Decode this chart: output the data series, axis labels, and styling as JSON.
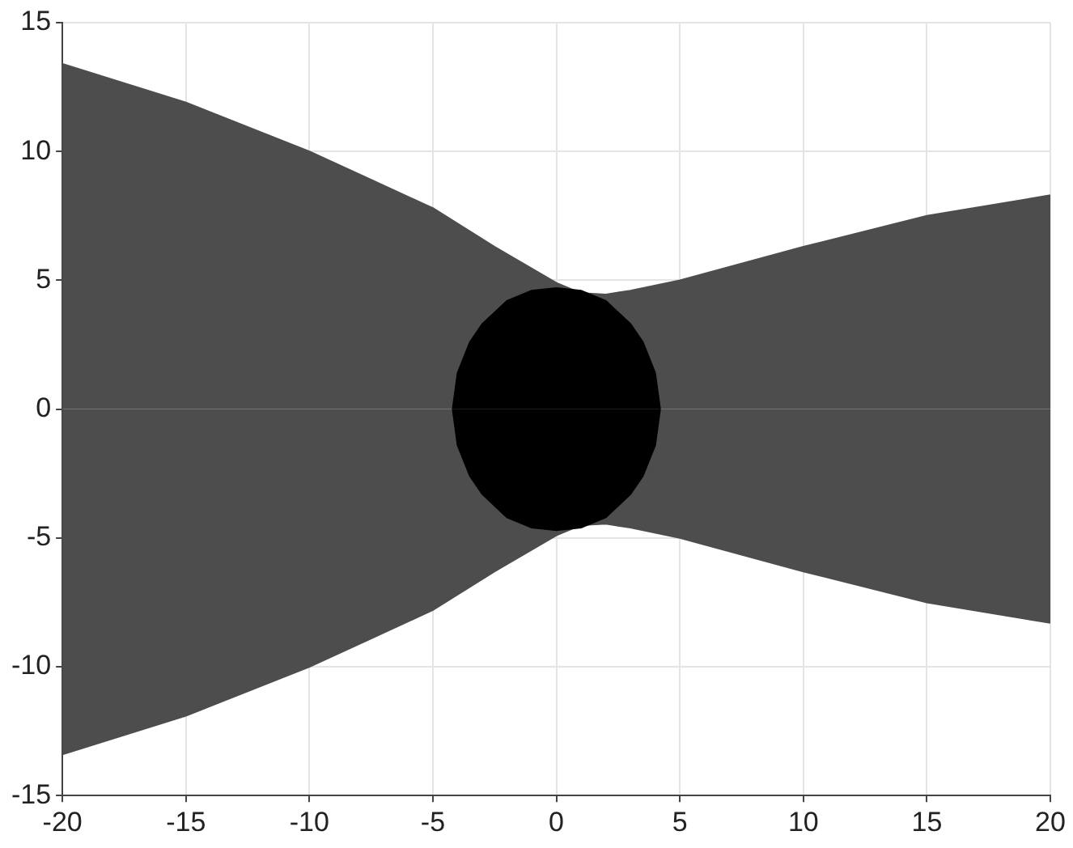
{
  "chart_data": {
    "type": "area",
    "xlim": [
      -20,
      20
    ],
    "ylim": [
      -15,
      15
    ],
    "xticks": [
      -20,
      -15,
      -10,
      -5,
      0,
      5,
      10,
      15,
      20
    ],
    "yticks": [
      -15,
      -10,
      -5,
      0,
      5,
      10,
      15
    ],
    "grid": true,
    "legend": false,
    "series": [
      {
        "color": "#4d4d4d",
        "x": [
          -20,
          -15,
          -10,
          -7.5,
          -5,
          -2.5,
          0,
          1,
          2,
          3,
          5,
          10,
          15,
          20
        ],
        "values": [
          13.4,
          11.9,
          10.0,
          8.9,
          7.8,
          6.3,
          4.9,
          4.5,
          4.45,
          4.6,
          5.0,
          6.3,
          7.5,
          8.3
        ]
      },
      {
        "color": "#4d4d4d",
        "x": [
          -20,
          -15,
          -10,
          -7.5,
          -5,
          -2.5,
          0,
          1,
          2,
          3,
          5,
          10,
          15,
          20
        ],
        "values": [
          -13.4,
          -11.9,
          -10.0,
          -8.9,
          -7.8,
          -6.3,
          -4.9,
          -4.5,
          -4.45,
          -4.6,
          -5.0,
          -6.3,
          -7.5,
          -8.3
        ]
      },
      {
        "color": "#000000",
        "x": [
          -4.2,
          -4,
          -3.5,
          -3,
          -2,
          -1,
          0,
          1,
          2,
          3,
          3.5,
          4,
          4.2
        ],
        "values": [
          0,
          1.4,
          2.6,
          3.3,
          4.2,
          4.6,
          4.7,
          4.6,
          4.2,
          3.3,
          2.6,
          1.4,
          0
        ]
      },
      {
        "color": "#000000",
        "x": [
          -4.2,
          -4,
          -3.5,
          -3,
          -2,
          -1,
          0,
          1,
          2,
          3,
          3.5,
          4,
          4.2
        ],
        "values": [
          0,
          -1.4,
          -2.6,
          -3.3,
          -4.2,
          -4.6,
          -4.7,
          -4.6,
          -4.2,
          -3.3,
          -2.6,
          -1.4,
          0
        ]
      }
    ]
  }
}
